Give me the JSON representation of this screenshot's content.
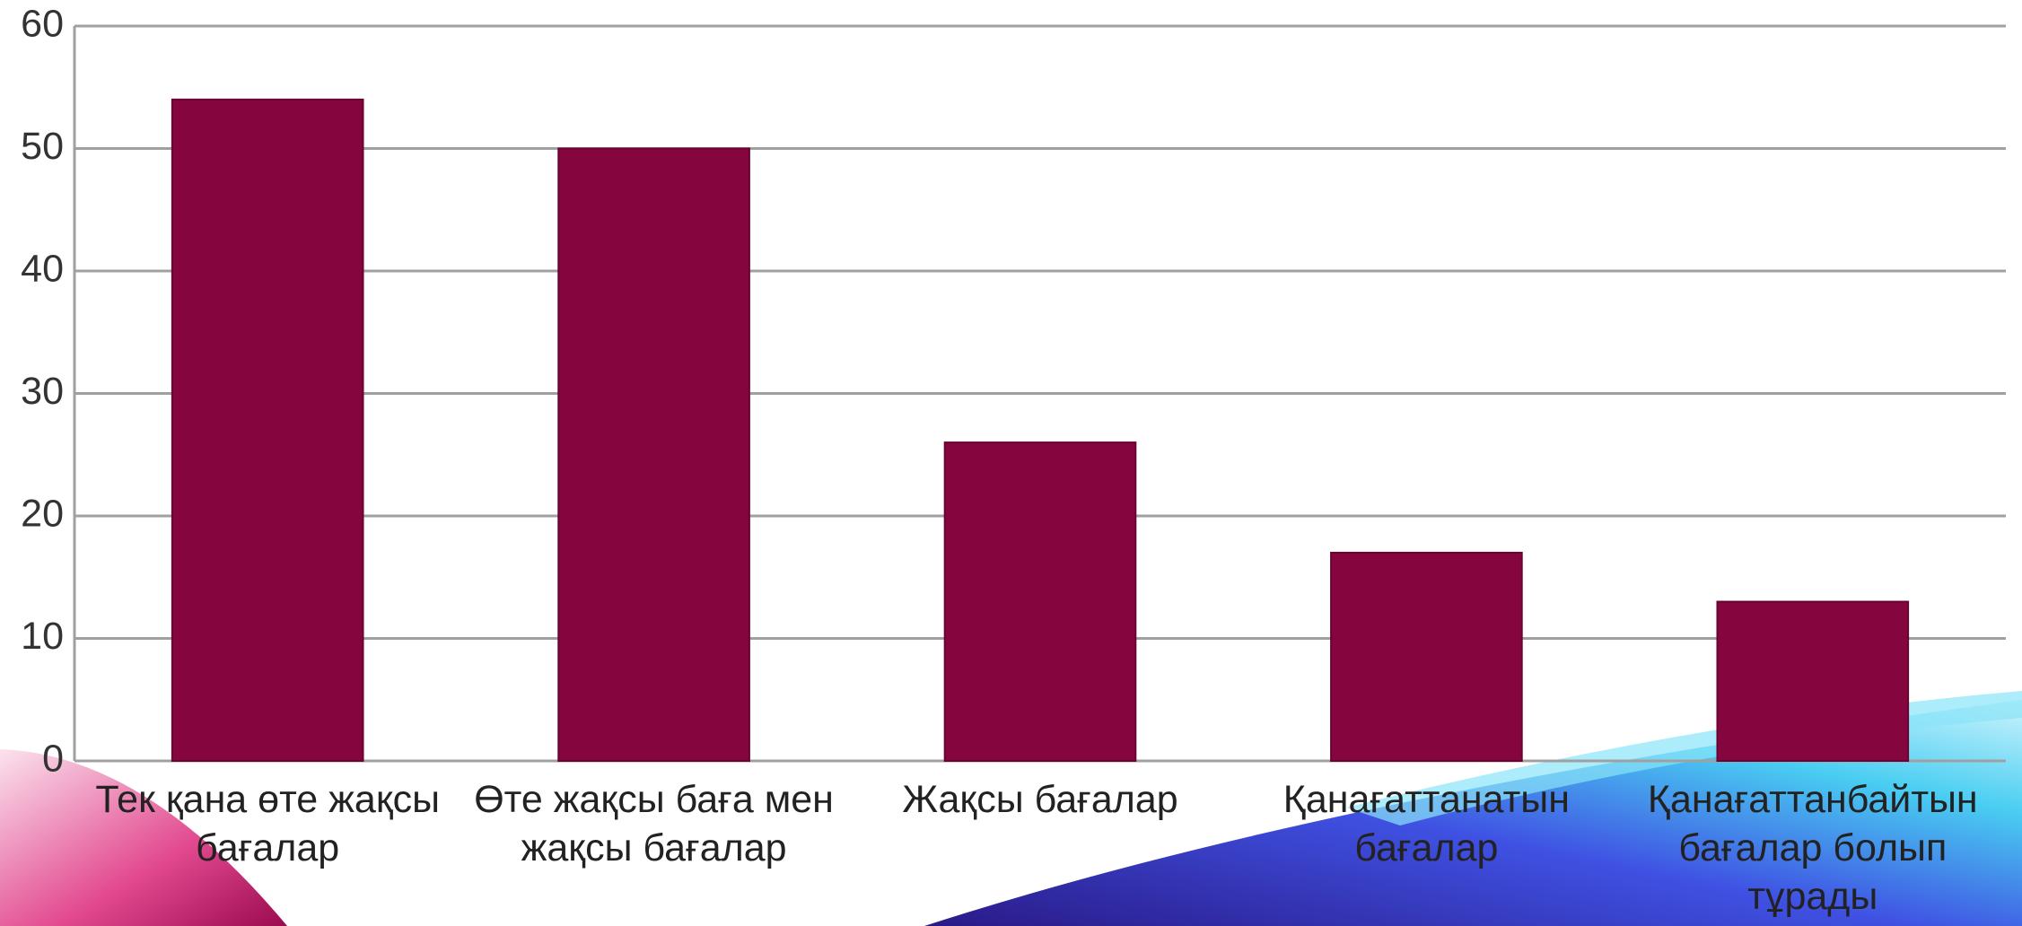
{
  "chart_data": {
    "type": "bar",
    "categories": [
      "Тек қана өте жақсы бағалар",
      "Өте жақсы баға мен жақсы бағалар",
      "Жақсы бағалар",
      "Қанағаттанатын бағалар",
      "Қанағаттанбайтын бағалар болып тұрады"
    ],
    "values": [
      54,
      50,
      26,
      17,
      13
    ],
    "color": "#85053f",
    "ylim": [
      0,
      60
    ],
    "yticks": [
      0,
      10,
      20,
      30,
      40,
      50,
      60
    ],
    "grid": true
  }
}
